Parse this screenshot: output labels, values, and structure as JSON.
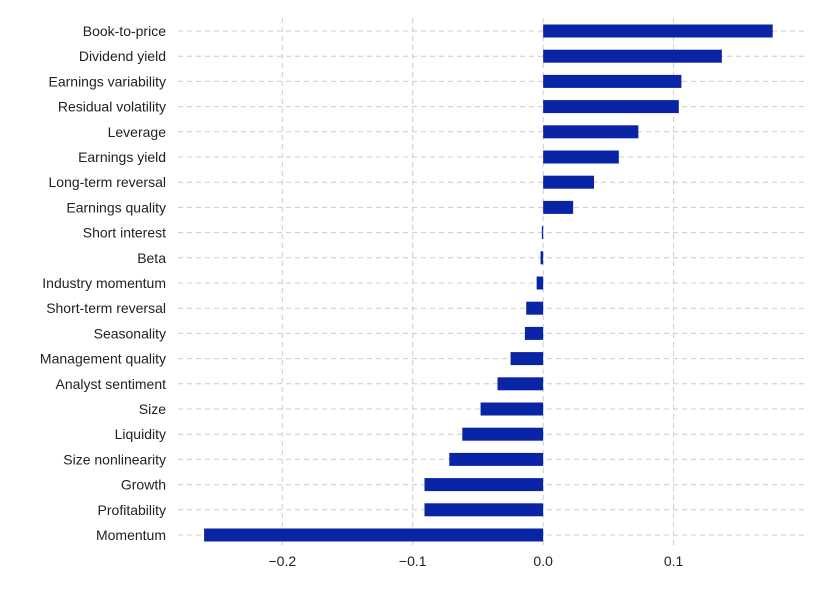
{
  "chart_data": {
    "type": "bar",
    "orientation": "horizontal",
    "title": "",
    "xlabel": "",
    "ylabel": "",
    "categories": [
      "Book-to-price",
      "Dividend yield",
      "Earnings variability",
      "Residual volatility",
      "Leverage",
      "Earnings yield",
      "Long-term reversal",
      "Earnings quality",
      "Short interest",
      "Beta",
      "Industry momentum",
      "Short-term reversal",
      "Seasonality",
      "Management quality",
      "Analyst sentiment",
      "Size",
      "Liquidity",
      "Size nonlinearity",
      "Growth",
      "Profitability",
      "Momentum"
    ],
    "values": [
      0.176,
      0.137,
      0.106,
      0.104,
      0.073,
      0.058,
      0.039,
      0.023,
      -0.001,
      -0.002,
      -0.005,
      -0.013,
      -0.014,
      -0.025,
      -0.035,
      -0.048,
      -0.062,
      -0.072,
      -0.091,
      -0.091,
      -0.26
    ],
    "xlim": [
      -0.28,
      0.2
    ],
    "xticks": [
      -0.2,
      -0.1,
      0.0,
      0.1
    ],
    "xtick_labels": [
      "−0.2",
      "−0.1",
      "0.0",
      "0.1"
    ],
    "grid": true,
    "bar_color": "#0a24a6"
  }
}
